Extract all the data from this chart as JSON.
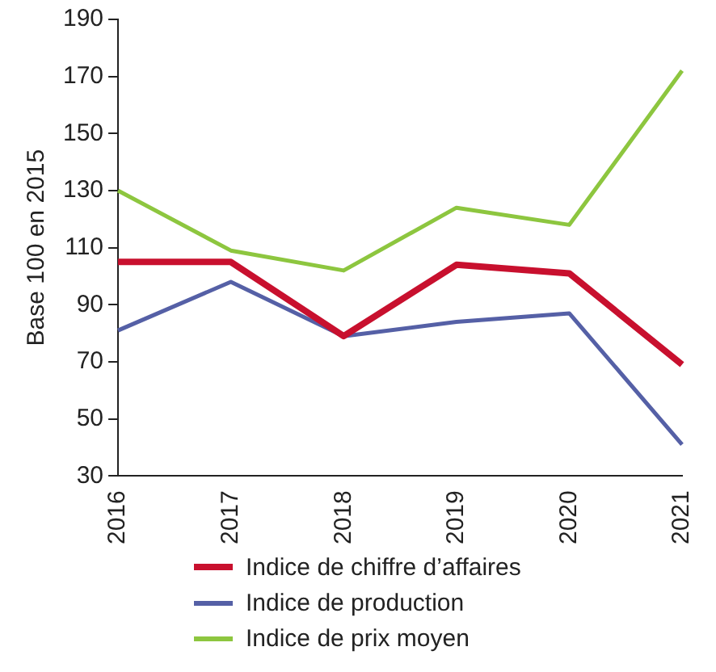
{
  "chart_data": {
    "type": "line",
    "ylabel": "Base 100 en 2015",
    "categories": [
      "2016",
      "2017",
      "2018",
      "2019",
      "2020",
      "2021"
    ],
    "series": [
      {
        "name": "Indice de chiffre d’affaires",
        "color": "#c8102e",
        "values": [
          105,
          105,
          79,
          104,
          101,
          69
        ]
      },
      {
        "name": "Indice de production",
        "color": "#5560a6",
        "values": [
          81,
          98,
          79,
          84,
          87,
          41
        ]
      },
      {
        "name": "Indice de prix moyen",
        "color": "#8dc63f",
        "values": [
          130,
          109,
          102,
          124,
          118,
          172
        ]
      }
    ],
    "ylim": [
      30,
      190
    ],
    "yticks": [
      30,
      50,
      70,
      90,
      110,
      130,
      150,
      170,
      190
    ],
    "grid": false,
    "legend": "bottom",
    "marker": "none",
    "line_style": "solid"
  }
}
